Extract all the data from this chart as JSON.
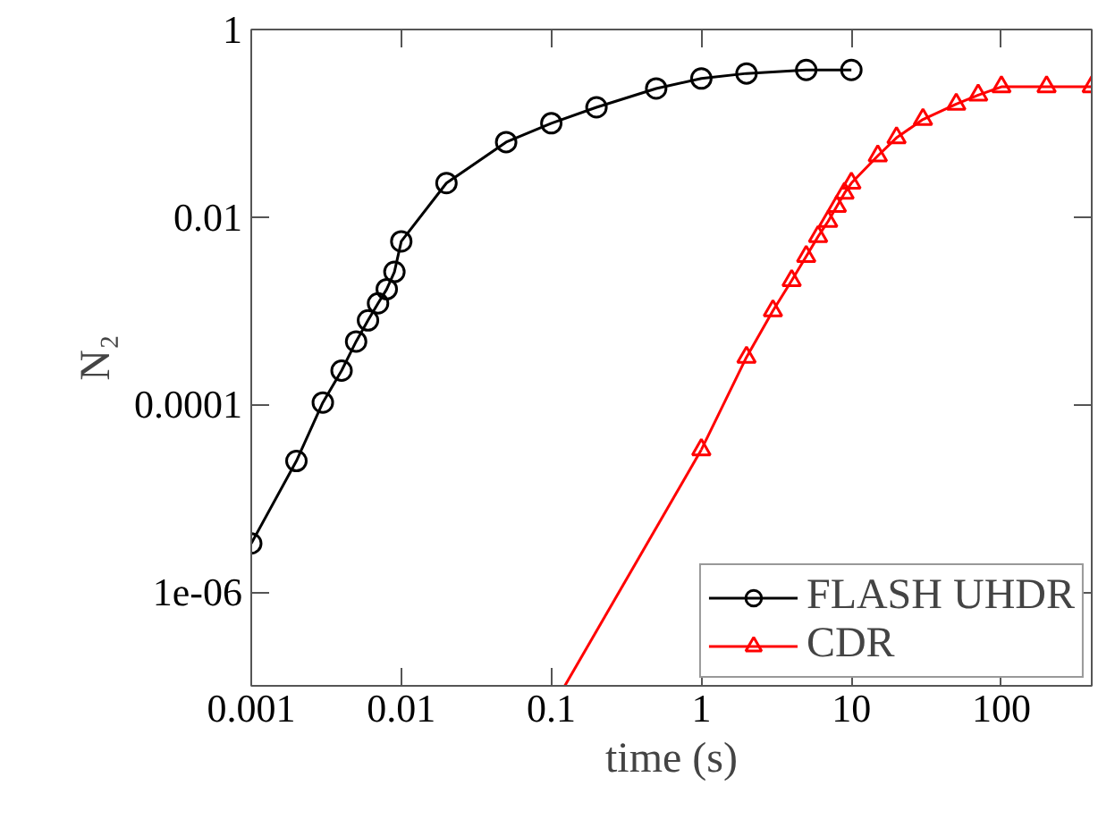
{
  "chart_data": {
    "type": "line",
    "xlabel": "time (s)",
    "ylabel": "N₂",
    "log": "xy",
    "xlim": [
      0.001,
      400
    ],
    "ylim": [
      1e-07,
      1
    ],
    "xticks": [
      0.001,
      0.01,
      0.1,
      1,
      10,
      100
    ],
    "yticks": [
      {
        "value": 1e-06,
        "label": "1e-06"
      },
      {
        "value": 0.0001,
        "label": "0.0001"
      },
      {
        "value": 0.01,
        "label": "0.01"
      },
      {
        "value": 1,
        "label": "1"
      }
    ],
    "grid": false,
    "legend": "bottom right",
    "line_style": "solid",
    "series": [
      {
        "name": "FLASH UHDR",
        "color": "#000000",
        "marker": "circle",
        "x": [
          0.001,
          0.002,
          0.003,
          0.004,
          0.005,
          0.006,
          0.007,
          0.008,
          0.009,
          0.01,
          0.02,
          0.05,
          0.1,
          0.2,
          0.5,
          1,
          2,
          5,
          10
        ],
        "values": [
          3.3e-06,
          2.5e-05,
          0.000105,
          0.00023,
          0.00047,
          0.00079,
          0.0012,
          0.0017,
          0.0026,
          0.0055,
          0.023,
          0.063,
          0.1,
          0.148,
          0.235,
          0.3,
          0.34,
          0.37,
          0.37
        ]
      },
      {
        "name": "CDR",
        "color": "#ff0000",
        "marker": "triangle",
        "x": [
          1,
          2,
          3,
          4,
          5,
          6,
          7,
          8,
          9,
          10,
          15,
          20,
          30,
          50,
          70,
          100,
          200,
          400
        ],
        "values": [
          3.3e-05,
          0.00032,
          0.001,
          0.0021,
          0.0038,
          0.0062,
          0.009,
          0.013,
          0.018,
          0.023,
          0.045,
          0.07,
          0.11,
          0.16,
          0.2,
          0.245,
          0.245,
          0.245
        ]
      },
      {
        "color": "#ff0000",
        "marker": "none",
        "x": [
          0.123,
          1
        ],
        "values": [
          1e-07,
          3.3e-05
        ]
      }
    ]
  }
}
